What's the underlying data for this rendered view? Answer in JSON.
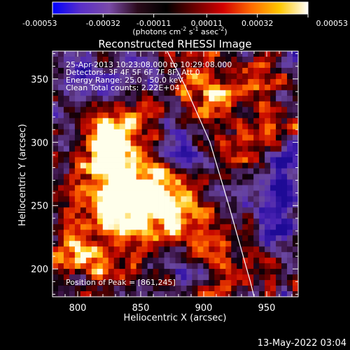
{
  "chart_data": {
    "type": "heatmap",
    "title": "Reconstructed RHESSI Image",
    "xlabel": "Heliocentric X (arcsec)",
    "ylabel": "Heliocentric Y (arcsec)",
    "xlim": [
      780,
      975
    ],
    "ylim": [
      178,
      372
    ],
    "xticks": [
      800,
      850,
      900,
      950
    ],
    "yticks": [
      200,
      250,
      300,
      350
    ],
    "x_tick_labels": [
      "800",
      "850",
      "900",
      "950"
    ],
    "y_tick_labels": [
      "200",
      "250",
      "300",
      "350"
    ],
    "colorbar": {
      "unit_main": "(photons cm",
      "unit_exp1": "-2",
      "unit_mid": " s",
      "unit_exp2": "-1",
      "unit_end": " asec",
      "unit_exp3": "-2",
      "unit_close": ")",
      "range": [
        -0.00053,
        0.00053
      ],
      "tick_values": [
        -0.00053,
        -0.00032,
        -0.00011,
        0.00011,
        0.00032,
        0.00053
      ],
      "tick_labels": [
        "-0.00053",
        "-0.00032",
        "-0.00011",
        "0.00011",
        "0.00032",
        "0.00053"
      ],
      "colors": [
        "#0000ff",
        "#5a2fc8",
        "#7a4aa8",
        "#2a0a1a",
        "#000000",
        "#6a0000",
        "#d20000",
        "#ff6a00",
        "#ffc800",
        "#ffffff"
      ]
    },
    "annotations": [
      "25-Apr-2013 10:23:08.000 to 10:29:08.000",
      "Detectors: 3F 4F 5F 6F 7F 8F, Att 0",
      "Energy Range: 25.0 - 50.0 keV",
      "Clean      Total counts: 2.22E+04",
      "Position of Peak = [861,245]"
    ],
    "limb": [
      [
        871,
        372
      ],
      [
        885,
        345
      ],
      [
        905,
        300
      ],
      [
        920,
        250
      ],
      [
        937,
        190
      ],
      [
        940,
        178
      ]
    ],
    "hot_regions": [
      {
        "x": 836,
        "y": 268,
        "sx": 22,
        "sy": 40,
        "a": 1.0
      },
      {
        "x": 862,
        "y": 246,
        "sx": 20,
        "sy": 18,
        "a": 1.15
      },
      {
        "x": 822,
        "y": 302,
        "sx": 14,
        "sy": 18,
        "a": 0.85
      },
      {
        "x": 900,
        "y": 335,
        "sx": 18,
        "sy": 14,
        "a": 0.75
      },
      {
        "x": 935,
        "y": 300,
        "sx": 16,
        "sy": 24,
        "a": 0.55
      },
      {
        "x": 915,
        "y": 220,
        "sx": 18,
        "sy": 16,
        "a": 0.55
      },
      {
        "x": 800,
        "y": 215,
        "sx": 14,
        "sy": 16,
        "a": 0.55
      },
      {
        "x": 905,
        "y": 190,
        "sx": 20,
        "sy": 10,
        "a": 0.45
      },
      {
        "x": 945,
        "y": 345,
        "sx": 16,
        "sy": 12,
        "a": 0.45
      }
    ],
    "cold_regions": [
      {
        "x": 820,
        "y": 345,
        "sx": 26,
        "sy": 18,
        "a": 0.9
      },
      {
        "x": 955,
        "y": 255,
        "sx": 18,
        "sy": 30,
        "a": 0.9
      },
      {
        "x": 885,
        "y": 195,
        "sx": 18,
        "sy": 14,
        "a": 0.7
      },
      {
        "x": 880,
        "y": 300,
        "sx": 14,
        "sy": 14,
        "a": 0.6
      }
    ]
  },
  "footer": {
    "date": "13-May-2022 03:04"
  }
}
